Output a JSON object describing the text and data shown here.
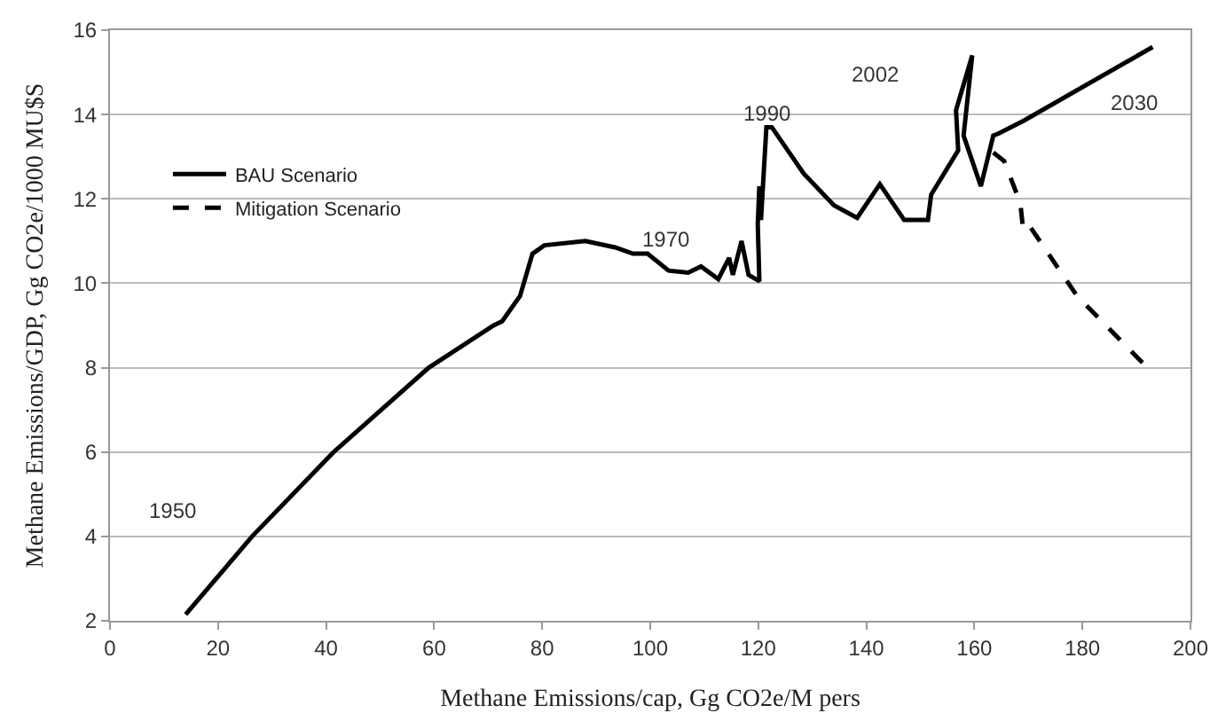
{
  "chart_data": {
    "type": "line",
    "xlabel": "Methane Emissions/cap, Gg CO2e/M pers",
    "ylabel": "Methane Emissions/GDP, Gg CO2e/1000 MU$S",
    "xlim": [
      0,
      200
    ],
    "xticks": [
      0,
      20,
      40,
      60,
      80,
      100,
      120,
      140,
      160,
      180,
      200
    ],
    "ylim": [
      2,
      16
    ],
    "yticks": [
      2,
      4,
      6,
      8,
      10,
      12,
      14,
      16
    ],
    "grid": "y",
    "legend": "top left",
    "marker": "none",
    "series": [
      {
        "name": "BAU Scenario",
        "color": "#000000",
        "line_style": "solid",
        "x": [
          14,
          19,
          26.3,
          41.4,
          59,
          71,
          72.6,
          75.9,
          78.2,
          80.4,
          88,
          93.5,
          96.8,
          99.5,
          103.4,
          107,
          109.4,
          112.6,
          114.6,
          115.3,
          116.9,
          118.2,
          120.2,
          119.9,
          120.2,
          120.5,
          121.5,
          122.5,
          128.4,
          134,
          138.3,
          142.5,
          147,
          151.4,
          152,
          157,
          156.6,
          159.6,
          158,
          161.2,
          163.5,
          164.5,
          169.1,
          193
        ],
        "values": [
          2.15,
          2.9,
          4.0,
          6.0,
          8.0,
          9.0,
          9.1,
          9.7,
          10.7,
          10.9,
          11.0,
          10.85,
          10.7,
          10.7,
          10.3,
          10.25,
          10.4,
          10.1,
          10.6,
          10.2,
          11.0,
          10.2,
          10.05,
          11.4,
          12.3,
          11.5,
          13.7,
          13.7,
          12.6,
          11.85,
          11.55,
          12.35,
          11.5,
          11.5,
          12.1,
          13.15,
          14.1,
          15.4,
          13.5,
          12.3,
          13.5,
          13.55,
          13.85,
          15.6
        ]
      },
      {
        "name": "Mitigation Scenario",
        "color": "#000000",
        "line_style": "dashed",
        "x": [
          163.5,
          165.5,
          168.5,
          169,
          170,
          179,
          192
        ],
        "values": [
          13.1,
          12.9,
          11.9,
          11.3,
          11.4,
          9.7,
          8.0
        ]
      }
    ],
    "annotations": [
      "1950",
      "1970",
      "1990",
      "2002",
      "2030"
    ]
  }
}
